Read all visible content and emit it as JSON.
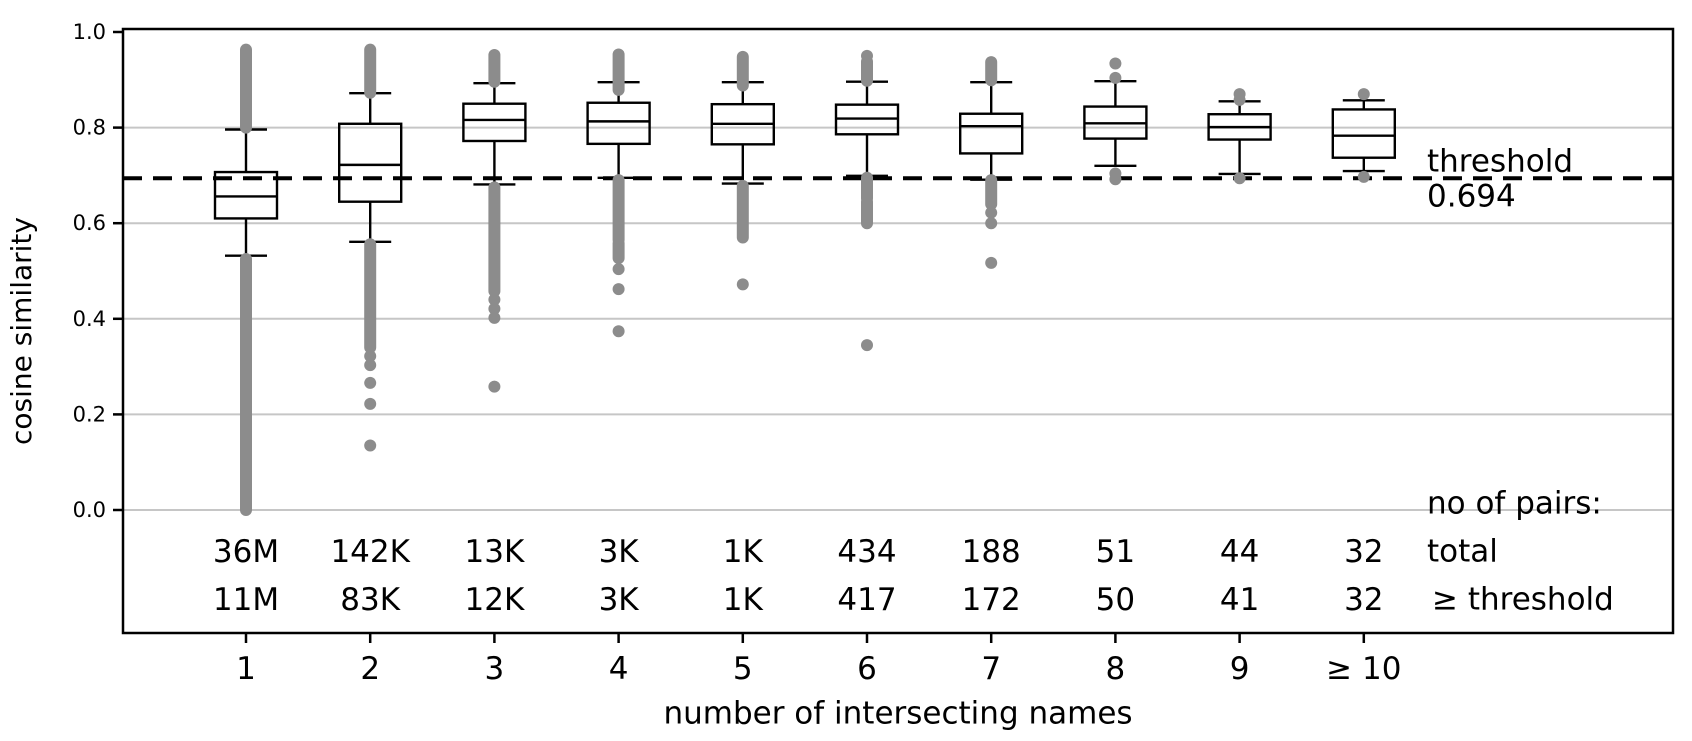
{
  "page": {
    "background": "#ffffff"
  },
  "colors": {
    "axis": "#000000",
    "grid": "#c6c6c6",
    "flier": "#8c8c8c",
    "box_line": "#000000",
    "threshold_line": "#000000",
    "text": "#000000"
  },
  "chart_data": {
    "type": "boxplot",
    "title": "",
    "xlabel": "number of intersecting names",
    "ylabel": "cosine similarity",
    "ylim": [
      0.0,
      1.0
    ],
    "grid": "horizontal",
    "legend": "none",
    "yticks": [
      {
        "value": 0.0,
        "label": "0.0"
      },
      {
        "value": 0.2,
        "label": "0.2"
      },
      {
        "value": 0.4,
        "label": "0.4"
      },
      {
        "value": 0.6,
        "label": "0.6"
      },
      {
        "value": 0.8,
        "label": "0.8"
      },
      {
        "value": 1.0,
        "label": "1.0"
      }
    ],
    "categories": [
      "1",
      "2",
      "3",
      "4",
      "5",
      "6",
      "7",
      "8",
      "9",
      "≥ 10"
    ],
    "threshold": {
      "value": 0.694,
      "label": "threshold",
      "value_label": "0.694"
    },
    "boxes": [
      {
        "category": "1",
        "whisker_low": 0.532,
        "q1": 0.61,
        "median": 0.656,
        "q3": 0.707,
        "whisker_high": 0.796,
        "outlier_runs": [
          [
            0.8,
            0.963
          ],
          [
            0.0,
            0.525
          ]
        ],
        "outlier_dots": []
      },
      {
        "category": "2",
        "whisker_low": 0.561,
        "q1": 0.645,
        "median": 0.722,
        "q3": 0.808,
        "whisker_high": 0.872,
        "outlier_runs": [
          [
            0.873,
            0.963
          ],
          [
            0.34,
            0.556
          ]
        ],
        "outlier_dots": [
          0.322,
          0.303,
          0.266,
          0.222,
          0.135
        ]
      },
      {
        "category": "3",
        "whisker_low": 0.681,
        "q1": 0.772,
        "median": 0.816,
        "q3": 0.85,
        "whisker_high": 0.893,
        "outlier_runs": [
          [
            0.896,
            0.952
          ],
          [
            0.458,
            0.675
          ]
        ],
        "outlier_dots": [
          0.44,
          0.421,
          0.402,
          0.258
        ]
      },
      {
        "category": "4",
        "whisker_low": 0.695,
        "q1": 0.766,
        "median": 0.813,
        "q3": 0.852,
        "whisker_high": 0.895,
        "outlier_runs": [
          [
            0.879,
            0.953
          ],
          [
            0.565,
            0.69
          ],
          [
            0.527,
            0.558
          ]
        ],
        "outlier_dots": [
          0.504,
          0.462,
          0.374
        ]
      },
      {
        "category": "5",
        "whisker_low": 0.683,
        "q1": 0.765,
        "median": 0.808,
        "q3": 0.849,
        "whisker_high": 0.895,
        "outlier_runs": [
          [
            0.888,
            0.948
          ],
          [
            0.57,
            0.678
          ]
        ],
        "outlier_dots": [
          0.472
        ]
      },
      {
        "category": "6",
        "whisker_low": 0.699,
        "q1": 0.786,
        "median": 0.819,
        "q3": 0.848,
        "whisker_high": 0.896,
        "outlier_runs": [
          [
            0.898,
            0.938
          ],
          [
            0.652,
            0.695
          ],
          [
            0.6,
            0.645
          ]
        ],
        "outlier_dots": [
          0.95,
          0.345
        ]
      },
      {
        "category": "7",
        "whisker_low": 0.691,
        "q1": 0.746,
        "median": 0.803,
        "q3": 0.829,
        "whisker_high": 0.895,
        "outlier_runs": [
          [
            0.899,
            0.937
          ],
          [
            0.64,
            0.69
          ]
        ],
        "outlier_dots": [
          0.622,
          0.6,
          0.517
        ]
      },
      {
        "category": "8",
        "whisker_low": 0.72,
        "q1": 0.777,
        "median": 0.809,
        "q3": 0.844,
        "whisker_high": 0.897,
        "outlier_runs": [],
        "outlier_dots": [
          0.934,
          0.904,
          0.704,
          0.692
        ]
      },
      {
        "category": "9",
        "whisker_low": 0.703,
        "q1": 0.775,
        "median": 0.801,
        "q3": 0.828,
        "whisker_high": 0.855,
        "outlier_runs": [],
        "outlier_dots": [
          0.87,
          0.858,
          0.694
        ]
      },
      {
        "category": "≥ 10",
        "whisker_low": 0.709,
        "q1": 0.737,
        "median": 0.783,
        "q3": 0.838,
        "whisker_high": 0.857,
        "outlier_runs": [],
        "outlier_dots": [
          0.87,
          0.697
        ]
      }
    ],
    "pair_counts": {
      "header": "no of pairs:",
      "rows": [
        {
          "label": "total",
          "values": [
            "36M",
            "142K",
            "13K",
            "3K",
            "1K",
            "434",
            "188",
            "51",
            "44",
            "32"
          ]
        },
        {
          "label": "≥ threshold",
          "values": [
            "11M",
            "83K",
            "12K",
            "3K",
            "1K",
            "417",
            "172",
            "50",
            "41",
            "32"
          ]
        }
      ]
    }
  }
}
